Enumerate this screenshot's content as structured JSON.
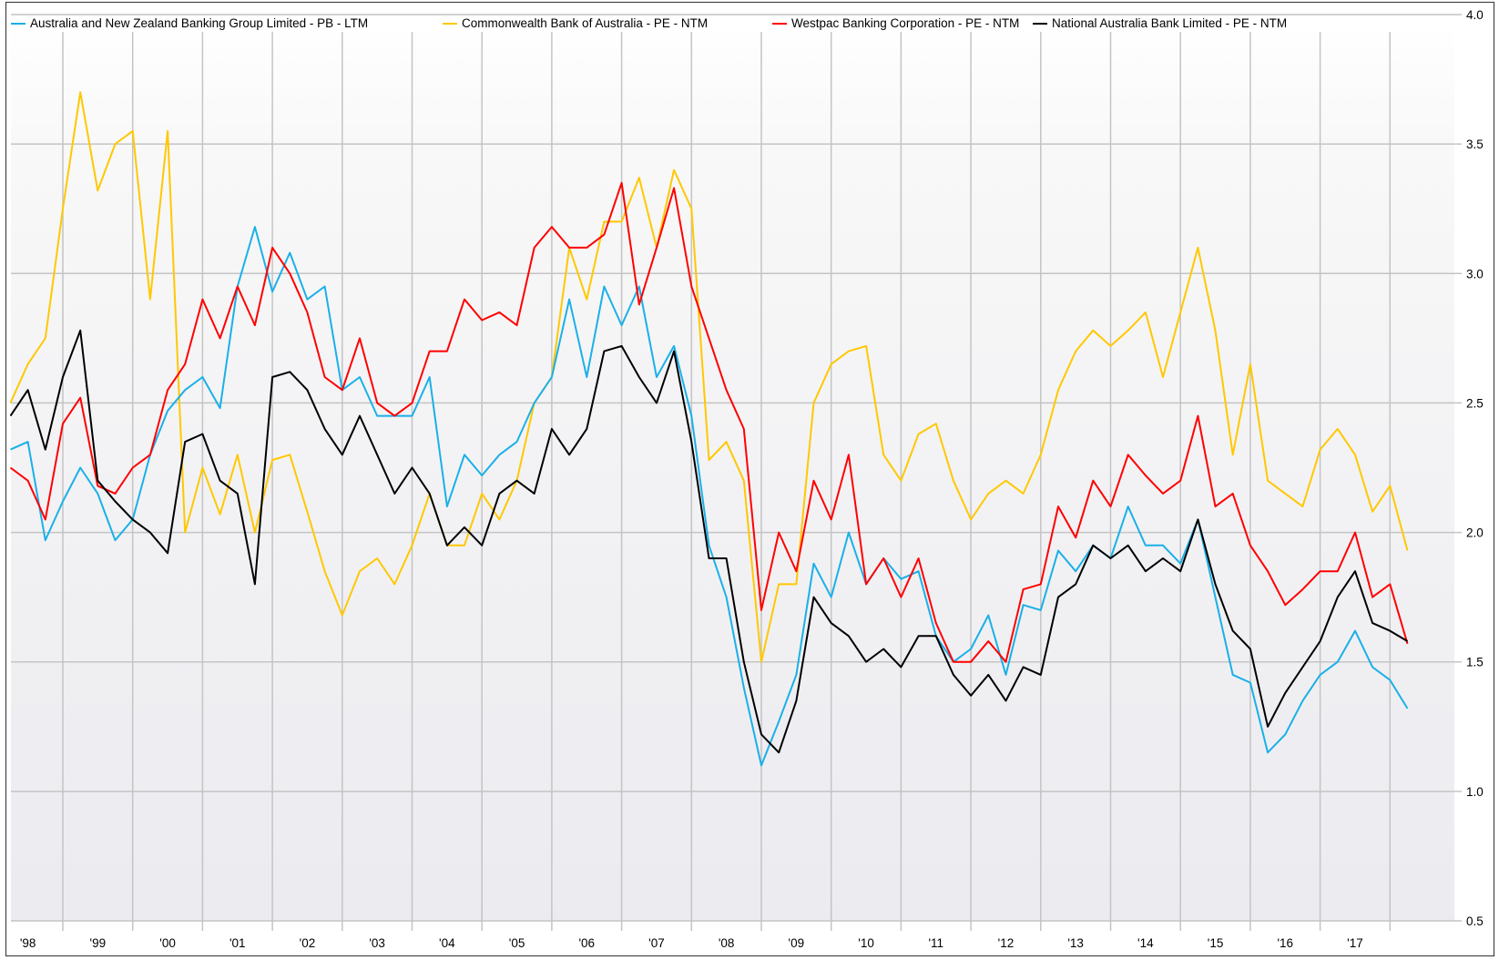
{
  "chart_data": {
    "type": "line",
    "title": "",
    "xlabel": "",
    "ylabel": "",
    "x_start": 1998.25,
    "x_step": 0.25,
    "xlim": [
      1998.26,
      2018.93
    ],
    "ylim": [
      0.5,
      4.0
    ],
    "y_axis_side": "right",
    "y_ticks": [
      "0.5",
      "1.0",
      "1.5",
      "2.0",
      "2.5",
      "3.0",
      "3.5",
      "4.0"
    ],
    "x_tick_labels": [
      "'98",
      "'99",
      "'00",
      "'01",
      "'02",
      "'03",
      "'04",
      "'05",
      "'06",
      "'07",
      "'08",
      "'09",
      "'10",
      "'11",
      "'12",
      "'13",
      "'14",
      "'15",
      "'16",
      "'17"
    ],
    "x_tick_years": [
      1998,
      1999,
      2000,
      2001,
      2002,
      2003,
      2004,
      2005,
      2006,
      2007,
      2008,
      2009,
      2010,
      2011,
      2012,
      2013,
      2014,
      2015,
      2016,
      2017
    ],
    "grid": true,
    "legend_position": "top",
    "series": [
      {
        "name": "Australia and New Zealand Banking Group Limited - PB - LTM",
        "color": "#1ab0e8",
        "values": [
          2.32,
          2.35,
          1.97,
          2.12,
          2.25,
          2.15,
          1.97,
          2.05,
          2.3,
          2.47,
          2.55,
          2.6,
          2.48,
          2.95,
          3.18,
          2.93,
          3.08,
          2.9,
          2.95,
          2.55,
          2.6,
          2.45,
          2.45,
          2.45,
          2.6,
          2.1,
          2.3,
          2.22,
          2.3,
          2.35,
          2.5,
          2.6,
          2.9,
          2.6,
          2.95,
          2.8,
          2.95,
          2.6,
          2.72,
          2.45,
          1.95,
          1.75,
          1.4,
          1.1,
          1.27,
          1.45,
          1.88,
          1.75,
          2.0,
          1.8,
          1.9,
          1.82,
          1.85,
          1.6,
          1.5,
          1.55,
          1.68,
          1.45,
          1.72,
          1.7,
          1.93,
          1.85,
          1.95,
          1.9,
          2.1,
          1.95,
          1.95,
          1.88,
          2.05,
          1.75,
          1.45,
          1.42,
          1.15,
          1.22,
          1.35,
          1.45,
          1.5,
          1.62,
          1.48,
          1.43,
          1.32
        ]
      },
      {
        "name": "Commonwealth Bank of Australia - PE - NTM",
        "color": "#ffc800",
        "values": [
          2.5,
          2.65,
          2.75,
          3.25,
          3.7,
          3.32,
          3.5,
          3.55,
          2.9,
          3.55,
          2.0,
          2.25,
          2.07,
          2.3,
          2.0,
          2.28,
          2.3,
          2.08,
          1.85,
          1.68,
          1.85,
          1.9,
          1.8,
          1.95,
          2.15,
          1.95,
          1.95,
          2.15,
          2.05,
          2.2,
          2.5,
          2.6,
          3.1,
          2.9,
          3.2,
          3.2,
          3.37,
          3.1,
          3.4,
          3.25,
          2.28,
          2.35,
          2.2,
          1.5,
          1.8,
          1.8,
          2.5,
          2.65,
          2.7,
          2.72,
          2.3,
          2.2,
          2.38,
          2.42,
          2.2,
          2.05,
          2.15,
          2.2,
          2.15,
          2.3,
          2.55,
          2.7,
          2.78,
          2.72,
          2.78,
          2.85,
          2.6,
          2.85,
          3.1,
          2.78,
          2.3,
          2.65,
          2.2,
          2.15,
          2.1,
          2.32,
          2.4,
          2.3,
          2.08,
          2.18,
          1.93
        ]
      },
      {
        "name": "Westpac Banking Corporation - PE - NTM",
        "color": "#ff0000",
        "values": [
          2.25,
          2.2,
          2.05,
          2.42,
          2.52,
          2.18,
          2.15,
          2.25,
          2.3,
          2.55,
          2.65,
          2.9,
          2.75,
          2.95,
          2.8,
          3.1,
          3.0,
          2.85,
          2.6,
          2.55,
          2.75,
          2.5,
          2.45,
          2.5,
          2.7,
          2.7,
          2.9,
          2.82,
          2.85,
          2.8,
          3.1,
          3.18,
          3.1,
          3.1,
          3.15,
          3.35,
          2.88,
          3.1,
          3.33,
          2.95,
          2.75,
          2.55,
          2.4,
          1.7,
          2.0,
          1.85,
          2.2,
          2.05,
          2.3,
          1.8,
          1.9,
          1.75,
          1.9,
          1.65,
          1.5,
          1.5,
          1.58,
          1.5,
          1.78,
          1.8,
          2.1,
          1.98,
          2.2,
          2.1,
          2.3,
          2.22,
          2.15,
          2.2,
          2.45,
          2.1,
          2.15,
          1.95,
          1.85,
          1.72,
          1.78,
          1.85,
          1.85,
          2.0,
          1.75,
          1.8,
          1.57
        ]
      },
      {
        "name": "National Australia Bank Limited - PE - NTM",
        "color": "#000000",
        "values": [
          2.45,
          2.55,
          2.32,
          2.6,
          2.78,
          2.2,
          2.12,
          2.05,
          2.0,
          1.92,
          2.35,
          2.38,
          2.2,
          2.15,
          1.8,
          2.6,
          2.62,
          2.55,
          2.4,
          2.3,
          2.45,
          2.3,
          2.15,
          2.25,
          2.15,
          1.95,
          2.02,
          1.95,
          2.15,
          2.2,
          2.15,
          2.4,
          2.3,
          2.4,
          2.7,
          2.72,
          2.6,
          2.5,
          2.7,
          2.35,
          1.9,
          1.9,
          1.5,
          1.22,
          1.15,
          1.35,
          1.75,
          1.65,
          1.6,
          1.5,
          1.55,
          1.48,
          1.6,
          1.6,
          1.45,
          1.37,
          1.45,
          1.35,
          1.48,
          1.45,
          1.75,
          1.8,
          1.95,
          1.9,
          1.95,
          1.85,
          1.9,
          1.85,
          2.05,
          1.8,
          1.62,
          1.55,
          1.25,
          1.38,
          1.48,
          1.58,
          1.75,
          1.85,
          1.65,
          1.62,
          1.58
        ]
      }
    ]
  }
}
